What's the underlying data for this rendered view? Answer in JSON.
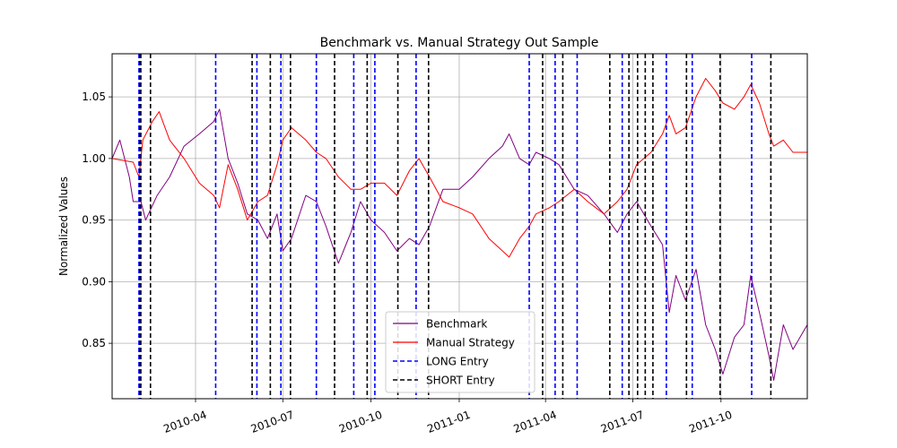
{
  "chart_data": {
    "type": "line",
    "title": "Benchmark vs. Manual Strategy Out Sample",
    "xlabel": "",
    "ylabel": "Normalized Values",
    "xlim": [
      "2010-01-04",
      "2011-12-30"
    ],
    "ylim": [
      0.805,
      1.085
    ],
    "grid": true,
    "legend_position": "bottom-center",
    "x_ticks": [
      {
        "date": "2010-04-01",
        "label": "2010-04"
      },
      {
        "date": "2010-07-01",
        "label": "2010-07"
      },
      {
        "date": "2010-10-01",
        "label": "2010-10"
      },
      {
        "date": "2011-01-01",
        "label": "2011-01"
      },
      {
        "date": "2011-04-01",
        "label": "2011-04"
      },
      {
        "date": "2011-07-01",
        "label": "2011-07"
      },
      {
        "date": "2011-10-01",
        "label": "2011-10"
      }
    ],
    "y_ticks": [
      0.85,
      0.9,
      0.95,
      1.0,
      1.05
    ],
    "series": [
      {
        "name": "Benchmark",
        "color": "#800080",
        "points": [
          [
            "2010-01-04",
            1.0
          ],
          [
            "2010-01-12",
            1.015
          ],
          [
            "2010-01-22",
            0.985
          ],
          [
            "2010-01-26",
            0.965
          ],
          [
            "2010-02-03",
            0.965
          ],
          [
            "2010-02-08",
            0.95
          ],
          [
            "2010-02-20",
            0.97
          ],
          [
            "2010-03-05",
            0.985
          ],
          [
            "2010-03-20",
            1.01
          ],
          [
            "2010-04-05",
            1.02
          ],
          [
            "2010-04-20",
            1.03
          ],
          [
            "2010-04-26",
            1.04
          ],
          [
            "2010-05-05",
            1.0
          ],
          [
            "2010-05-15",
            0.98
          ],
          [
            "2010-05-25",
            0.955
          ],
          [
            "2010-06-05",
            0.95
          ],
          [
            "2010-06-15",
            0.935
          ],
          [
            "2010-06-25",
            0.955
          ],
          [
            "2010-07-01",
            0.925
          ],
          [
            "2010-07-10",
            0.935
          ],
          [
            "2010-07-25",
            0.97
          ],
          [
            "2010-08-05",
            0.965
          ],
          [
            "2010-08-15",
            0.945
          ],
          [
            "2010-08-28",
            0.915
          ],
          [
            "2010-09-10",
            0.94
          ],
          [
            "2010-09-20",
            0.965
          ],
          [
            "2010-10-01",
            0.95
          ],
          [
            "2010-10-15",
            0.94
          ],
          [
            "2010-10-28",
            0.925
          ],
          [
            "2010-11-10",
            0.935
          ],
          [
            "2010-11-20",
            0.93
          ],
          [
            "2010-12-01",
            0.945
          ],
          [
            "2010-12-15",
            0.975
          ],
          [
            "2011-01-01",
            0.975
          ],
          [
            "2011-01-15",
            0.985
          ],
          [
            "2011-02-01",
            1.0
          ],
          [
            "2011-02-15",
            1.01
          ],
          [
            "2011-02-22",
            1.02
          ],
          [
            "2011-03-05",
            1.0
          ],
          [
            "2011-03-15",
            0.995
          ],
          [
            "2011-03-22",
            1.005
          ],
          [
            "2011-04-05",
            1.0
          ],
          [
            "2011-04-15",
            0.995
          ],
          [
            "2011-05-01",
            0.975
          ],
          [
            "2011-05-15",
            0.97
          ],
          [
            "2011-06-01",
            0.955
          ],
          [
            "2011-06-15",
            0.94
          ],
          [
            "2011-06-25",
            0.955
          ],
          [
            "2011-07-05",
            0.965
          ],
          [
            "2011-07-20",
            0.945
          ],
          [
            "2011-08-01",
            0.93
          ],
          [
            "2011-08-08",
            0.875
          ],
          [
            "2011-08-15",
            0.905
          ],
          [
            "2011-08-25",
            0.885
          ],
          [
            "2011-09-05",
            0.91
          ],
          [
            "2011-09-15",
            0.865
          ],
          [
            "2011-09-25",
            0.845
          ],
          [
            "2011-10-03",
            0.825
          ],
          [
            "2011-10-15",
            0.855
          ],
          [
            "2011-10-25",
            0.865
          ],
          [
            "2011-11-01",
            0.905
          ],
          [
            "2011-11-10",
            0.875
          ],
          [
            "2011-11-20",
            0.84
          ],
          [
            "2011-11-25",
            0.82
          ],
          [
            "2011-12-05",
            0.865
          ],
          [
            "2011-12-15",
            0.845
          ],
          [
            "2011-12-30",
            0.865
          ]
        ]
      },
      {
        "name": "Manual Strategy",
        "color": "#ff0000",
        "points": [
          [
            "2010-01-04",
            1.0
          ],
          [
            "2010-01-26",
            0.997
          ],
          [
            "2010-02-01",
            0.985
          ],
          [
            "2010-02-05",
            1.015
          ],
          [
            "2010-02-15",
            1.03
          ],
          [
            "2010-02-22",
            1.038
          ],
          [
            "2010-03-05",
            1.015
          ],
          [
            "2010-03-20",
            1.0
          ],
          [
            "2010-04-05",
            0.98
          ],
          [
            "2010-04-20",
            0.97
          ],
          [
            "2010-04-26",
            0.96
          ],
          [
            "2010-05-05",
            0.995
          ],
          [
            "2010-05-15",
            0.975
          ],
          [
            "2010-05-25",
            0.95
          ],
          [
            "2010-06-05",
            0.965
          ],
          [
            "2010-06-15",
            0.97
          ],
          [
            "2010-06-25",
            0.995
          ],
          [
            "2010-07-01",
            1.015
          ],
          [
            "2010-07-10",
            1.025
          ],
          [
            "2010-07-25",
            1.015
          ],
          [
            "2010-08-05",
            1.005
          ],
          [
            "2010-08-15",
            1.0
          ],
          [
            "2010-08-28",
            0.985
          ],
          [
            "2010-09-10",
            0.975
          ],
          [
            "2010-09-20",
            0.975
          ],
          [
            "2010-10-01",
            0.98
          ],
          [
            "2010-10-15",
            0.98
          ],
          [
            "2010-10-28",
            0.97
          ],
          [
            "2010-11-10",
            0.99
          ],
          [
            "2010-11-20",
            1.0
          ],
          [
            "2010-12-01",
            0.985
          ],
          [
            "2010-12-15",
            0.965
          ],
          [
            "2011-01-01",
            0.96
          ],
          [
            "2011-01-15",
            0.955
          ],
          [
            "2011-02-01",
            0.935
          ],
          [
            "2011-02-15",
            0.925
          ],
          [
            "2011-02-22",
            0.92
          ],
          [
            "2011-03-05",
            0.935
          ],
          [
            "2011-03-15",
            0.945
          ],
          [
            "2011-03-22",
            0.955
          ],
          [
            "2011-04-05",
            0.96
          ],
          [
            "2011-04-15",
            0.965
          ],
          [
            "2011-05-01",
            0.975
          ],
          [
            "2011-05-15",
            0.965
          ],
          [
            "2011-06-01",
            0.955
          ],
          [
            "2011-06-15",
            0.965
          ],
          [
            "2011-06-25",
            0.975
          ],
          [
            "2011-07-05",
            0.995
          ],
          [
            "2011-07-20",
            1.005
          ],
          [
            "2011-08-01",
            1.02
          ],
          [
            "2011-08-08",
            1.035
          ],
          [
            "2011-08-15",
            1.02
          ],
          [
            "2011-08-25",
            1.025
          ],
          [
            "2011-09-05",
            1.05
          ],
          [
            "2011-09-15",
            1.065
          ],
          [
            "2011-09-25",
            1.055
          ],
          [
            "2011-10-03",
            1.045
          ],
          [
            "2011-10-15",
            1.04
          ],
          [
            "2011-10-25",
            1.05
          ],
          [
            "2011-11-01",
            1.06
          ],
          [
            "2011-11-10",
            1.045
          ],
          [
            "2011-11-20",
            1.02
          ],
          [
            "2011-11-25",
            1.01
          ],
          [
            "2011-12-05",
            1.015
          ],
          [
            "2011-12-15",
            1.005
          ],
          [
            "2011-12-30",
            1.005
          ]
        ]
      }
    ],
    "long_entries": {
      "name": "LONG Entry",
      "color": "#0000ff",
      "dates": [
        "2010-02-01",
        "2010-02-03",
        "2010-04-22",
        "2010-06-04",
        "2010-06-29",
        "2010-08-05",
        "2010-09-13",
        "2010-10-05",
        "2010-11-17",
        "2011-03-15",
        "2011-04-11",
        "2011-05-04",
        "2011-06-20",
        "2011-08-05",
        "2011-09-01",
        "2011-11-02"
      ]
    },
    "short_entries": {
      "name": "SHORT Entry",
      "color": "#000000",
      "dates": [
        "2010-02-02",
        "2010-02-13",
        "2010-05-30",
        "2010-06-18",
        "2010-07-09",
        "2010-08-24",
        "2010-09-27",
        "2010-10-29",
        "2010-11-30",
        "2011-03-29",
        "2011-04-19",
        "2011-06-07",
        "2011-06-27",
        "2011-07-06",
        "2011-07-14",
        "2011-07-22",
        "2011-08-26",
        "2011-09-30",
        "2011-11-22"
      ]
    }
  }
}
